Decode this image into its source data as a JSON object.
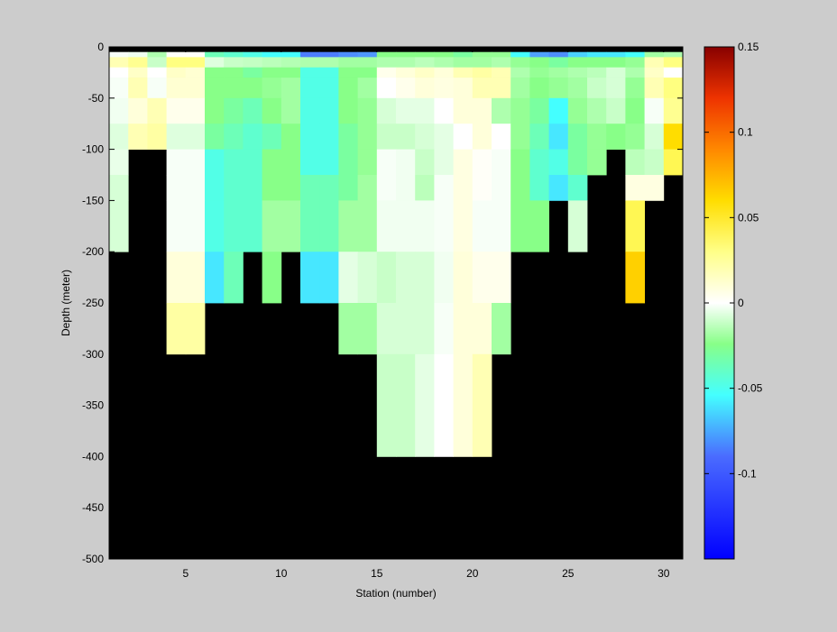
{
  "chart_data": {
    "type": "heatmap",
    "xlabel": "Station (number)",
    "ylabel": "Depth (meter)",
    "xlim": [
      1,
      31
    ],
    "ylim": [
      -500,
      0
    ],
    "xticks": [
      5,
      10,
      15,
      20,
      25,
      30
    ],
    "yticks": [
      0,
      -50,
      -100,
      -150,
      -200,
      -250,
      -300,
      -350,
      -400,
      -450,
      -500
    ],
    "colorbar": {
      "range": [
        -0.15,
        0.15
      ],
      "ticks": [
        0.15,
        0.1,
        0.05,
        0,
        -0.05,
        -0.1
      ],
      "colormap": "blue-cyan-green-white-yellow-orange-red"
    },
    "background_color": "#cccccc",
    "land_mask_color": "#000000",
    "stations": [
      1,
      2,
      3,
      4,
      5,
      6,
      7,
      8,
      9,
      10,
      11,
      12,
      13,
      14,
      15,
      16,
      17,
      18,
      19,
      20,
      21,
      22,
      23,
      24,
      25,
      26,
      27,
      28,
      29,
      30
    ],
    "depth_bins_top": [
      0,
      -5,
      -10,
      -20,
      -30,
      -50,
      -75,
      -100,
      -125,
      -150,
      -200,
      -250,
      -300,
      -400
    ],
    "depth_bins_bottom": [
      -5,
      -10,
      -20,
      -30,
      -50,
      -75,
      -100,
      -125,
      -150,
      -200,
      -250,
      -300,
      -400,
      -500
    ],
    "land_value": null,
    "values": [
      [
        null,
        null,
        null,
        null,
        null,
        null,
        null,
        null,
        null,
        null,
        null,
        null,
        null,
        null,
        null,
        null,
        null,
        null,
        null,
        null,
        null,
        null,
        null,
        null,
        null,
        null,
        null,
        null,
        null,
        null
      ],
      [
        -0.003,
        -0.006,
        -0.03,
        0.002,
        0.002,
        -0.055,
        -0.06,
        -0.065,
        -0.07,
        -0.07,
        -0.11,
        -0.11,
        -0.1,
        -0.095,
        -0.045,
        -0.045,
        -0.045,
        -0.045,
        -0.05,
        -0.04,
        -0.04,
        -0.07,
        -0.09,
        -0.1,
        -0.08,
        -0.075,
        -0.075,
        -0.07,
        -0.035,
        -0.03
      ],
      [
        0.02,
        0.03,
        -0.02,
        0.035,
        0.035,
        -0.012,
        -0.02,
        -0.022,
        -0.025,
        -0.028,
        -0.03,
        -0.03,
        -0.035,
        -0.035,
        -0.03,
        -0.03,
        -0.025,
        -0.03,
        -0.035,
        -0.035,
        -0.03,
        -0.04,
        -0.045,
        -0.05,
        -0.045,
        -0.045,
        -0.045,
        -0.04,
        0.02,
        0.035
      ],
      [
        0.0,
        0.015,
        0.0,
        0.015,
        0.012,
        -0.045,
        -0.045,
        -0.05,
        -0.045,
        -0.045,
        -0.065,
        -0.065,
        -0.045,
        -0.045,
        0.005,
        0.01,
        0.015,
        0.01,
        0.02,
        0.025,
        0.02,
        -0.03,
        -0.04,
        -0.035,
        -0.03,
        -0.025,
        -0.015,
        -0.03,
        0.015,
        0.0
      ],
      [
        -0.003,
        0.02,
        -0.003,
        0.012,
        0.012,
        -0.045,
        -0.045,
        -0.045,
        -0.04,
        -0.035,
        -0.065,
        -0.065,
        -0.045,
        -0.035,
        0.0,
        0.005,
        0.01,
        0.008,
        0.01,
        0.02,
        0.02,
        -0.035,
        -0.045,
        -0.04,
        -0.035,
        -0.02,
        -0.015,
        -0.04,
        0.02,
        0.035
      ],
      [
        -0.005,
        0.01,
        0.02,
        0.005,
        0.005,
        -0.045,
        -0.05,
        -0.055,
        -0.045,
        -0.035,
        -0.065,
        -0.065,
        -0.045,
        -0.04,
        -0.015,
        -0.01,
        -0.01,
        0.0,
        0.01,
        0.01,
        -0.03,
        -0.04,
        -0.05,
        -0.07,
        -0.04,
        -0.03,
        -0.02,
        -0.045,
        -0.003,
        0.03
      ],
      [
        -0.012,
        0.02,
        0.025,
        -0.012,
        -0.012,
        -0.05,
        -0.055,
        -0.06,
        -0.055,
        -0.045,
        -0.065,
        -0.065,
        -0.05,
        -0.04,
        -0.02,
        -0.02,
        -0.015,
        -0.01,
        0.0,
        0.01,
        0.0,
        -0.04,
        -0.055,
        -0.075,
        -0.05,
        -0.04,
        -0.045,
        -0.04,
        -0.015,
        0.06
      ],
      [
        -0.008,
        null,
        null,
        -0.003,
        -0.003,
        -0.065,
        -0.06,
        -0.06,
        -0.045,
        -0.045,
        -0.065,
        -0.065,
        -0.05,
        -0.04,
        -0.003,
        -0.005,
        -0.02,
        -0.01,
        0.008,
        0.002,
        -0.003,
        -0.045,
        -0.06,
        -0.065,
        -0.05,
        -0.04,
        null,
        -0.025,
        -0.02,
        0.045
      ],
      [
        -0.015,
        null,
        null,
        -0.003,
        -0.003,
        -0.065,
        -0.06,
        -0.06,
        -0.045,
        -0.045,
        -0.055,
        -0.055,
        -0.05,
        -0.035,
        -0.003,
        -0.005,
        -0.025,
        -0.003,
        0.008,
        0.002,
        -0.003,
        -0.045,
        -0.06,
        -0.075,
        -0.06,
        null,
        null,
        0.008,
        0.008,
        null
      ],
      [
        -0.015,
        null,
        null,
        -0.003,
        -0.003,
        -0.065,
        -0.06,
        -0.06,
        -0.035,
        -0.035,
        -0.055,
        -0.055,
        -0.035,
        -0.035,
        -0.005,
        -0.005,
        -0.005,
        -0.003,
        0.008,
        -0.003,
        -0.003,
        -0.045,
        -0.045,
        null,
        -0.015,
        null,
        null,
        0.045,
        null,
        null
      ],
      [
        null,
        null,
        null,
        0.01,
        0.01,
        -0.075,
        -0.055,
        null,
        -0.045,
        null,
        -0.075,
        -0.075,
        -0.01,
        -0.015,
        -0.02,
        -0.015,
        -0.015,
        -0.005,
        0.01,
        0.005,
        0.005,
        null,
        null,
        null,
        null,
        null,
        null,
        0.065,
        null,
        null
      ],
      [
        null,
        null,
        null,
        0.025,
        0.025,
        null,
        null,
        null,
        null,
        null,
        null,
        null,
        -0.035,
        -0.035,
        -0.015,
        -0.015,
        -0.015,
        -0.003,
        0.01,
        0.01,
        -0.035,
        null,
        null,
        null,
        null,
        null,
        null,
        null,
        null,
        null
      ],
      [
        null,
        null,
        null,
        null,
        null,
        null,
        null,
        null,
        null,
        null,
        null,
        null,
        null,
        null,
        -0.02,
        -0.02,
        -0.01,
        0.0,
        0.01,
        0.02,
        null,
        null,
        null,
        null,
        null,
        null,
        null,
        null,
        null,
        null
      ],
      [
        null,
        null,
        null,
        null,
        null,
        null,
        null,
        null,
        null,
        null,
        null,
        null,
        null,
        null,
        null,
        null,
        null,
        null,
        null,
        null,
        null,
        null,
        null,
        null,
        null,
        null,
        null,
        null,
        null,
        null
      ]
    ]
  }
}
